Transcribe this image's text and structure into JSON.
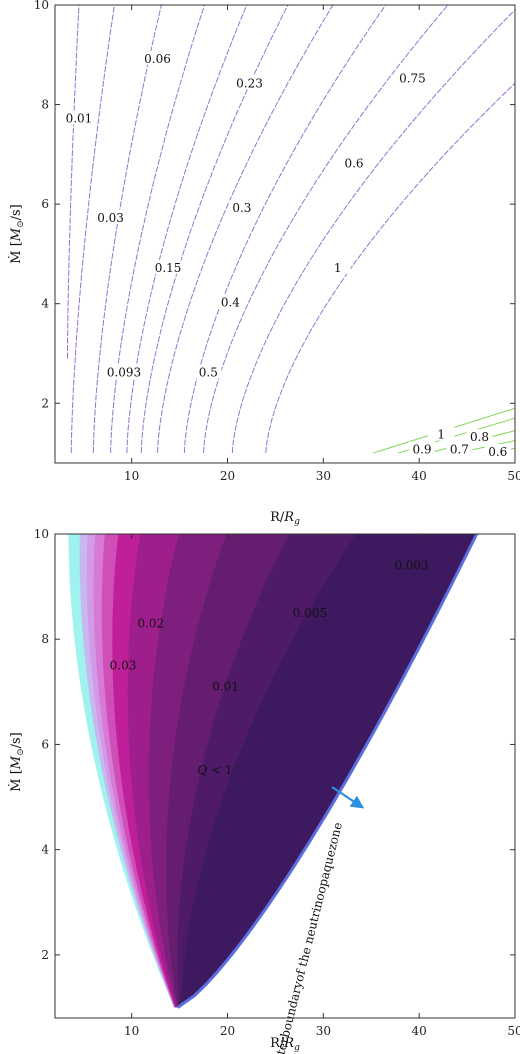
{
  "chart_data": [
    {
      "type": "contour",
      "xlabel": "R/R_g",
      "ylabel": "Ṁ [M_⊙/s]",
      "xlim": [
        2,
        50
      ],
      "ylim": [
        0.8,
        10
      ],
      "x_ticks": [
        10,
        20,
        30,
        40,
        50
      ],
      "y_ticks": [
        2,
        4,
        6,
        8,
        10
      ],
      "contour_labels": [
        {
          "text": "0.01",
          "x": 4.5,
          "y": 7.7
        },
        {
          "text": "0.06",
          "x": 12.7,
          "y": 8.9
        },
        {
          "text": "0.03",
          "x": 7.8,
          "y": 5.7
        },
        {
          "text": "0.15",
          "x": 13.8,
          "y": 4.7
        },
        {
          "text": "0.093",
          "x": 9.2,
          "y": 2.6
        },
        {
          "text": "0.23",
          "x": 22.3,
          "y": 8.4
        },
        {
          "text": "0.3",
          "x": 21.5,
          "y": 5.9
        },
        {
          "text": "0.4",
          "x": 20.3,
          "y": 4.0
        },
        {
          "text": "0.5",
          "x": 18.0,
          "y": 2.6
        },
        {
          "text": "0.6",
          "x": 33.2,
          "y": 6.8
        },
        {
          "text": "0.75",
          "x": 39.3,
          "y": 8.5
        },
        {
          "text": "1",
          "x": 31.5,
          "y": 4.7
        }
      ],
      "green_labels": [
        {
          "text": "1",
          "x": 42.3,
          "y": 1.35
        },
        {
          "text": "0.9",
          "x": 40.3,
          "y": 1.05
        },
        {
          "text": "0.7",
          "x": 44.2,
          "y": 1.05
        },
        {
          "text": "0.8",
          "x": 46.3,
          "y": 1.3
        },
        {
          "text": "0.6",
          "x": 48.2,
          "y": 1.0
        }
      ],
      "colors": {
        "contour_line": "#9b6fd4",
        "green_line": "#7ed957"
      }
    },
    {
      "type": "contour_filled",
      "xlabel": "R/R_g",
      "ylabel": "Ṁ [M_⊙/s]",
      "xlim": [
        2,
        50
      ],
      "ylim": [
        0.8,
        10
      ],
      "x_ticks": [
        10,
        20,
        30,
        40,
        50
      ],
      "y_ticks": [
        2,
        4,
        6,
        8,
        10
      ],
      "contour_labels": [
        {
          "text": "0.003",
          "x": 39.2,
          "y": 9.4
        },
        {
          "text": "0.005",
          "x": 28.6,
          "y": 8.5
        },
        {
          "text": "0.02",
          "x": 12.0,
          "y": 8.3
        },
        {
          "text": "0.03",
          "x": 9.1,
          "y": 7.5
        },
        {
          "text": "0.01",
          "x": 19.8,
          "y": 7.1
        }
      ],
      "region_label": "Q < 1",
      "boundary_label": "Outerboundaryof the neutrinoopaquezone",
      "colors": {
        "band_colors": [
          "#9ff2ee",
          "#c7b8f0",
          "#d39ae6",
          "#d77ad6",
          "#cf4eb8",
          "#c01f9a",
          "#9e1f8c",
          "#7e1f7e",
          "#641d6f",
          "#4f1b68",
          "#3d1a60"
        ],
        "boundary": "#5a6ee0",
        "arrow": "#2e8fdd"
      }
    }
  ]
}
